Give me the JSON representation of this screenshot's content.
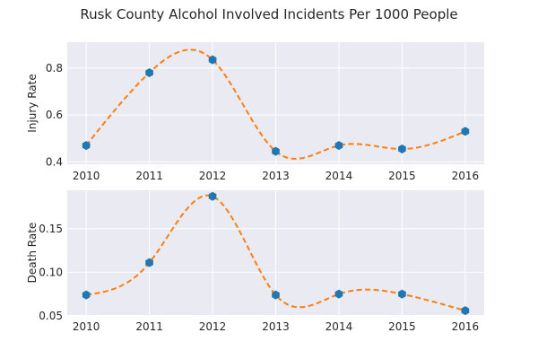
{
  "chart_data": [
    {
      "type": "scatter",
      "title": "Rusk County Alcohol Involved Incidents Per 1000 People",
      "xlabel": "",
      "ylabel": "Injury Rate",
      "x": [
        2010,
        2011,
        2012,
        2013,
        2014,
        2015,
        2016
      ],
      "series": [
        {
          "values": [
            0.47,
            0.78,
            0.835,
            0.445,
            0.47,
            0.455,
            0.53
          ],
          "marker": "hexagon",
          "color": "#1f77b4"
        }
      ],
      "trend_curve": {
        "style": "dashed",
        "color": "#ff7f0e",
        "interpolation": "smooth"
      },
      "xlim": [
        2009.7,
        2016.3
      ],
      "ylim": [
        0.39,
        0.91
      ],
      "xticks": [
        "2010",
        "2011",
        "2012",
        "2013",
        "2014",
        "2015",
        "2016"
      ],
      "yticks": [
        "0.4",
        "0.6",
        "0.8"
      ],
      "grid": true,
      "legend": "none"
    },
    {
      "type": "scatter",
      "xlabel": "",
      "ylabel": "Death Rate",
      "x": [
        2010,
        2011,
        2012,
        2013,
        2014,
        2015,
        2016
      ],
      "series": [
        {
          "values": [
            0.074,
            0.111,
            0.187,
            0.074,
            0.075,
            0.075,
            0.056
          ],
          "marker": "hexagon",
          "color": "#1f77b4"
        }
      ],
      "trend_curve": {
        "style": "dashed",
        "color": "#ff7f0e",
        "interpolation": "smooth"
      },
      "xlim": [
        2009.7,
        2016.3
      ],
      "ylim": [
        0.051,
        0.194
      ],
      "xticks": [
        "2010",
        "2011",
        "2012",
        "2013",
        "2014",
        "2015",
        "2016"
      ],
      "yticks": [
        "0.05",
        "0.10",
        "0.15"
      ],
      "grid": true,
      "legend": "none"
    }
  ]
}
